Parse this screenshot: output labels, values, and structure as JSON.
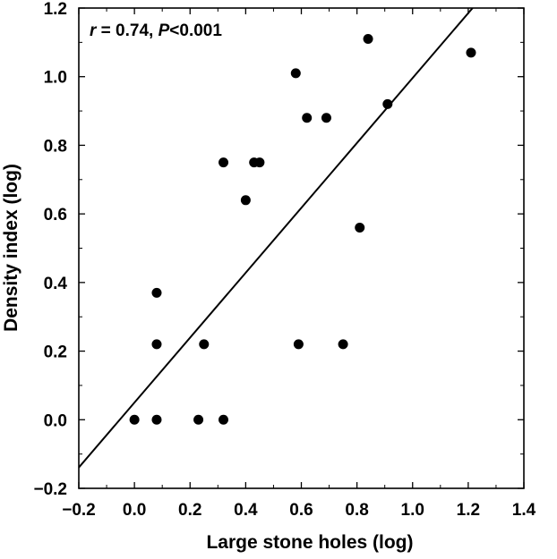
{
  "chart_data": {
    "type": "scatter",
    "xlabel": "Large stone holes (log)",
    "ylabel": "Density index (log)",
    "xlim": [
      -0.2,
      1.4
    ],
    "ylim": [
      -0.2,
      1.2
    ],
    "xticks": [
      -0.2,
      0.0,
      0.2,
      0.4,
      0.6,
      0.8,
      1.0,
      1.2,
      1.4
    ],
    "yticks": [
      -0.2,
      0.0,
      0.2,
      0.4,
      0.6,
      0.8,
      1.0,
      1.2
    ],
    "xtick_labels": [
      "−0.2",
      "0.0",
      "0.2",
      "0.4",
      "0.6",
      "0.8",
      "1.0",
      "1.2",
      "1.4"
    ],
    "ytick_labels": [
      "−0.2",
      "0.0",
      "0.2",
      "0.4",
      "0.6",
      "0.8",
      "1.0",
      "1.2"
    ],
    "annotation": {
      "r_symbol": "r",
      "r_text": " = 0.74, ",
      "p_symbol": "P",
      "p_text": "<0.001"
    },
    "points": [
      {
        "x": 0.0,
        "y": 0.0
      },
      {
        "x": 0.08,
        "y": 0.0
      },
      {
        "x": 0.23,
        "y": 0.0
      },
      {
        "x": 0.32,
        "y": 0.0
      },
      {
        "x": 0.08,
        "y": 0.22
      },
      {
        "x": 0.25,
        "y": 0.22
      },
      {
        "x": 0.59,
        "y": 0.22
      },
      {
        "x": 0.75,
        "y": 0.22
      },
      {
        "x": 0.08,
        "y": 0.37
      },
      {
        "x": 0.81,
        "y": 0.56
      },
      {
        "x": 0.4,
        "y": 0.64
      },
      {
        "x": 0.32,
        "y": 0.75
      },
      {
        "x": 0.43,
        "y": 0.75
      },
      {
        "x": 0.45,
        "y": 0.75
      },
      {
        "x": 0.62,
        "y": 0.88
      },
      {
        "x": 0.69,
        "y": 0.88
      },
      {
        "x": 0.91,
        "y": 0.92
      },
      {
        "x": 0.58,
        "y": 1.01
      },
      {
        "x": 0.84,
        "y": 1.11
      },
      {
        "x": 1.21,
        "y": 1.07
      }
    ],
    "regression": {
      "slope": 0.946,
      "intercept": 0.05
    }
  }
}
